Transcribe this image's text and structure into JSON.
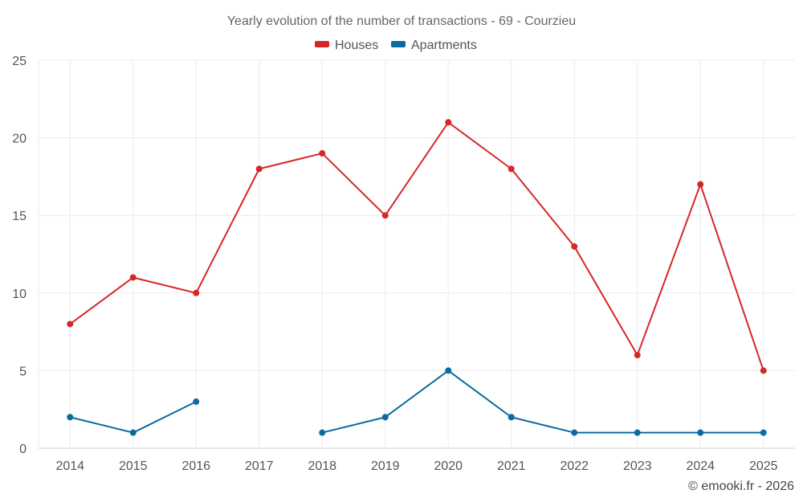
{
  "chart_data": {
    "type": "line",
    "title": "Yearly evolution of the number of transactions - 69 - Courzieu",
    "categories": [
      "2014",
      "2015",
      "2016",
      "2017",
      "2018",
      "2019",
      "2020",
      "2021",
      "2022",
      "2023",
      "2024",
      "2025"
    ],
    "ylim": [
      0,
      25
    ],
    "yticks": [
      0,
      5,
      10,
      15,
      20,
      25
    ],
    "grid": true,
    "legend_position": "top-center",
    "series": [
      {
        "name": "Houses",
        "color": "#d62728",
        "values": [
          8,
          11,
          10,
          18,
          19,
          15,
          21,
          18,
          13,
          6,
          17,
          5
        ]
      },
      {
        "name": "Apartments",
        "color": "#0b6aa2",
        "values": [
          2,
          1,
          3,
          null,
          1,
          2,
          5,
          2,
          1,
          1,
          1,
          1
        ]
      }
    ],
    "credit": "© emooki.fr - 2026"
  }
}
